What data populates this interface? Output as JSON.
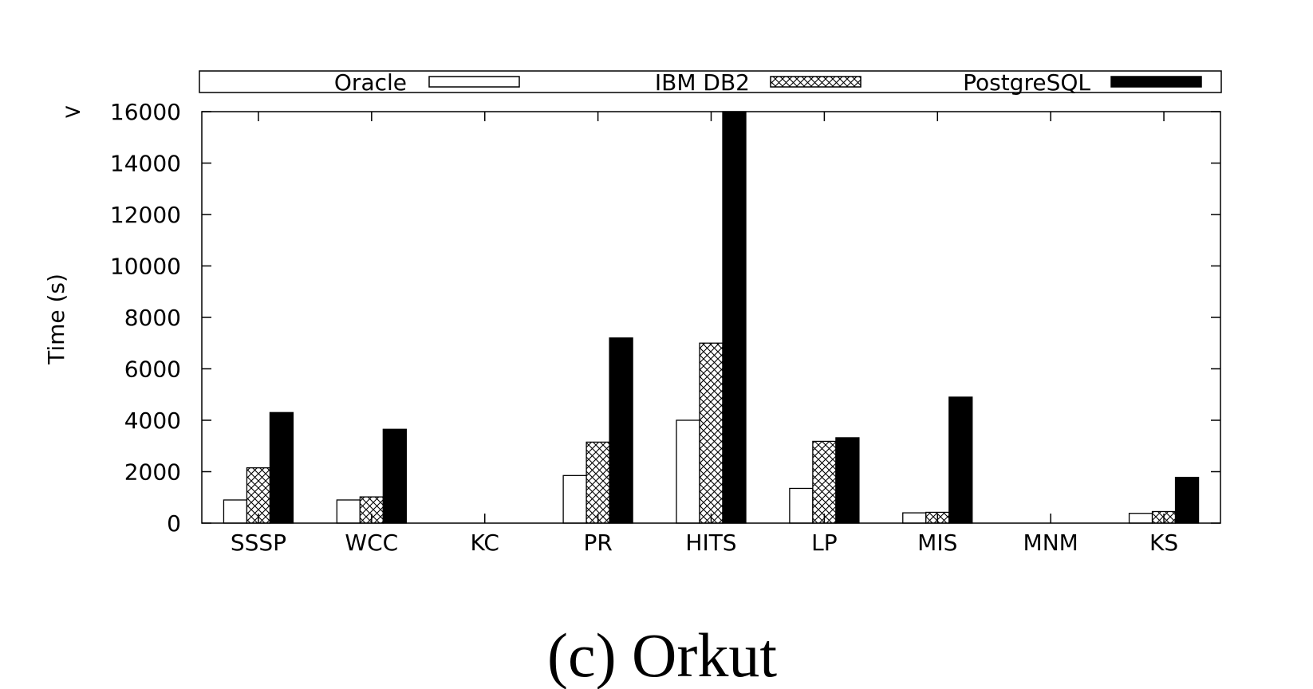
{
  "chart_data": {
    "type": "bar",
    "ylabel": "Time (s)",
    "ylim": [
      0,
      16000
    ],
    "yticks": [
      "0",
      "2000",
      "4000",
      "6000",
      "8000",
      "10000",
      "12000",
      "14000",
      "16000"
    ],
    "ytick_top_prefix": ">",
    "categories": [
      "SSSP",
      "WCC",
      "KC",
      "PR",
      "HITS",
      "LP",
      "MIS",
      "MNM",
      "KS"
    ],
    "series": [
      {
        "name": "Oracle",
        "fill": "white",
        "values": [
          900,
          900,
          null,
          1850,
          4000,
          1350,
          400,
          null,
          380
        ]
      },
      {
        "name": "IBM DB2",
        "fill": "crosshatch",
        "values": [
          2150,
          1020,
          null,
          3150,
          7000,
          3180,
          420,
          null,
          450
        ]
      },
      {
        "name": "PostgreSQL",
        "fill": "black",
        "values": [
          4300,
          3650,
          null,
          7200,
          16000,
          3320,
          4900,
          null,
          1780
        ]
      }
    ],
    "legend_position": "top",
    "grid": false
  },
  "caption": "(c) Orkut"
}
